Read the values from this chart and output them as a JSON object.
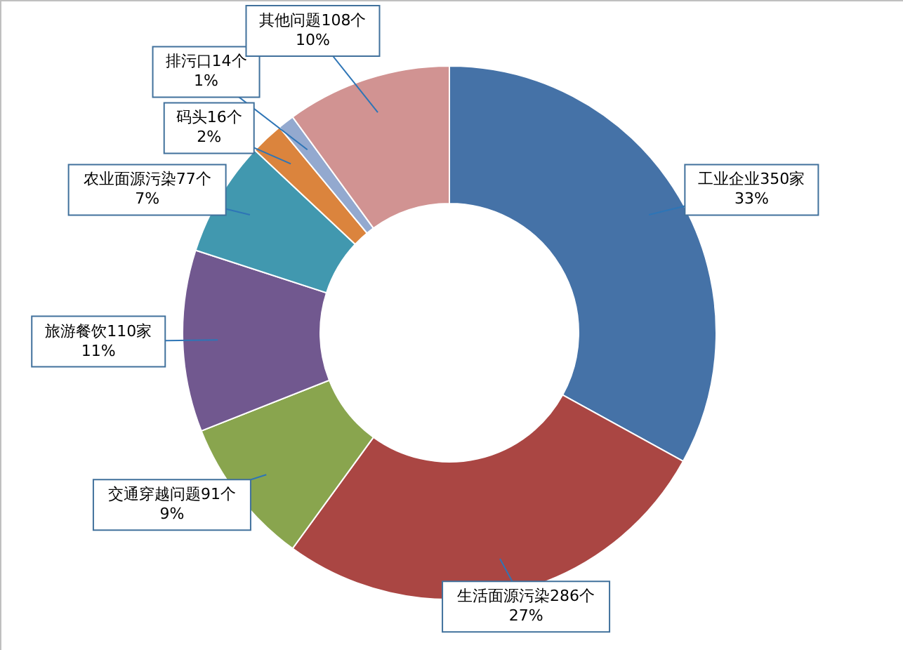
{
  "chart_data": {
    "type": "donut",
    "categories": [
      "工业企业350家",
      "生活面源污染286个",
      "交通穿越问题91个",
      "旅游餐饮110家",
      "农业面源污染77个",
      "码头16个",
      "排污口14个",
      "其他问题108个"
    ],
    "values": [
      33,
      27,
      9,
      11,
      7,
      2,
      1,
      10
    ],
    "colors": [
      "#4572a7",
      "#aa4643",
      "#89a54e",
      "#71588f",
      "#4198af",
      "#db843d",
      "#93a9cf",
      "#d19392"
    ],
    "value_labels": [
      "33%",
      "27%",
      "9%",
      "11%",
      "7%",
      "2%",
      "1%",
      "10%"
    ]
  }
}
